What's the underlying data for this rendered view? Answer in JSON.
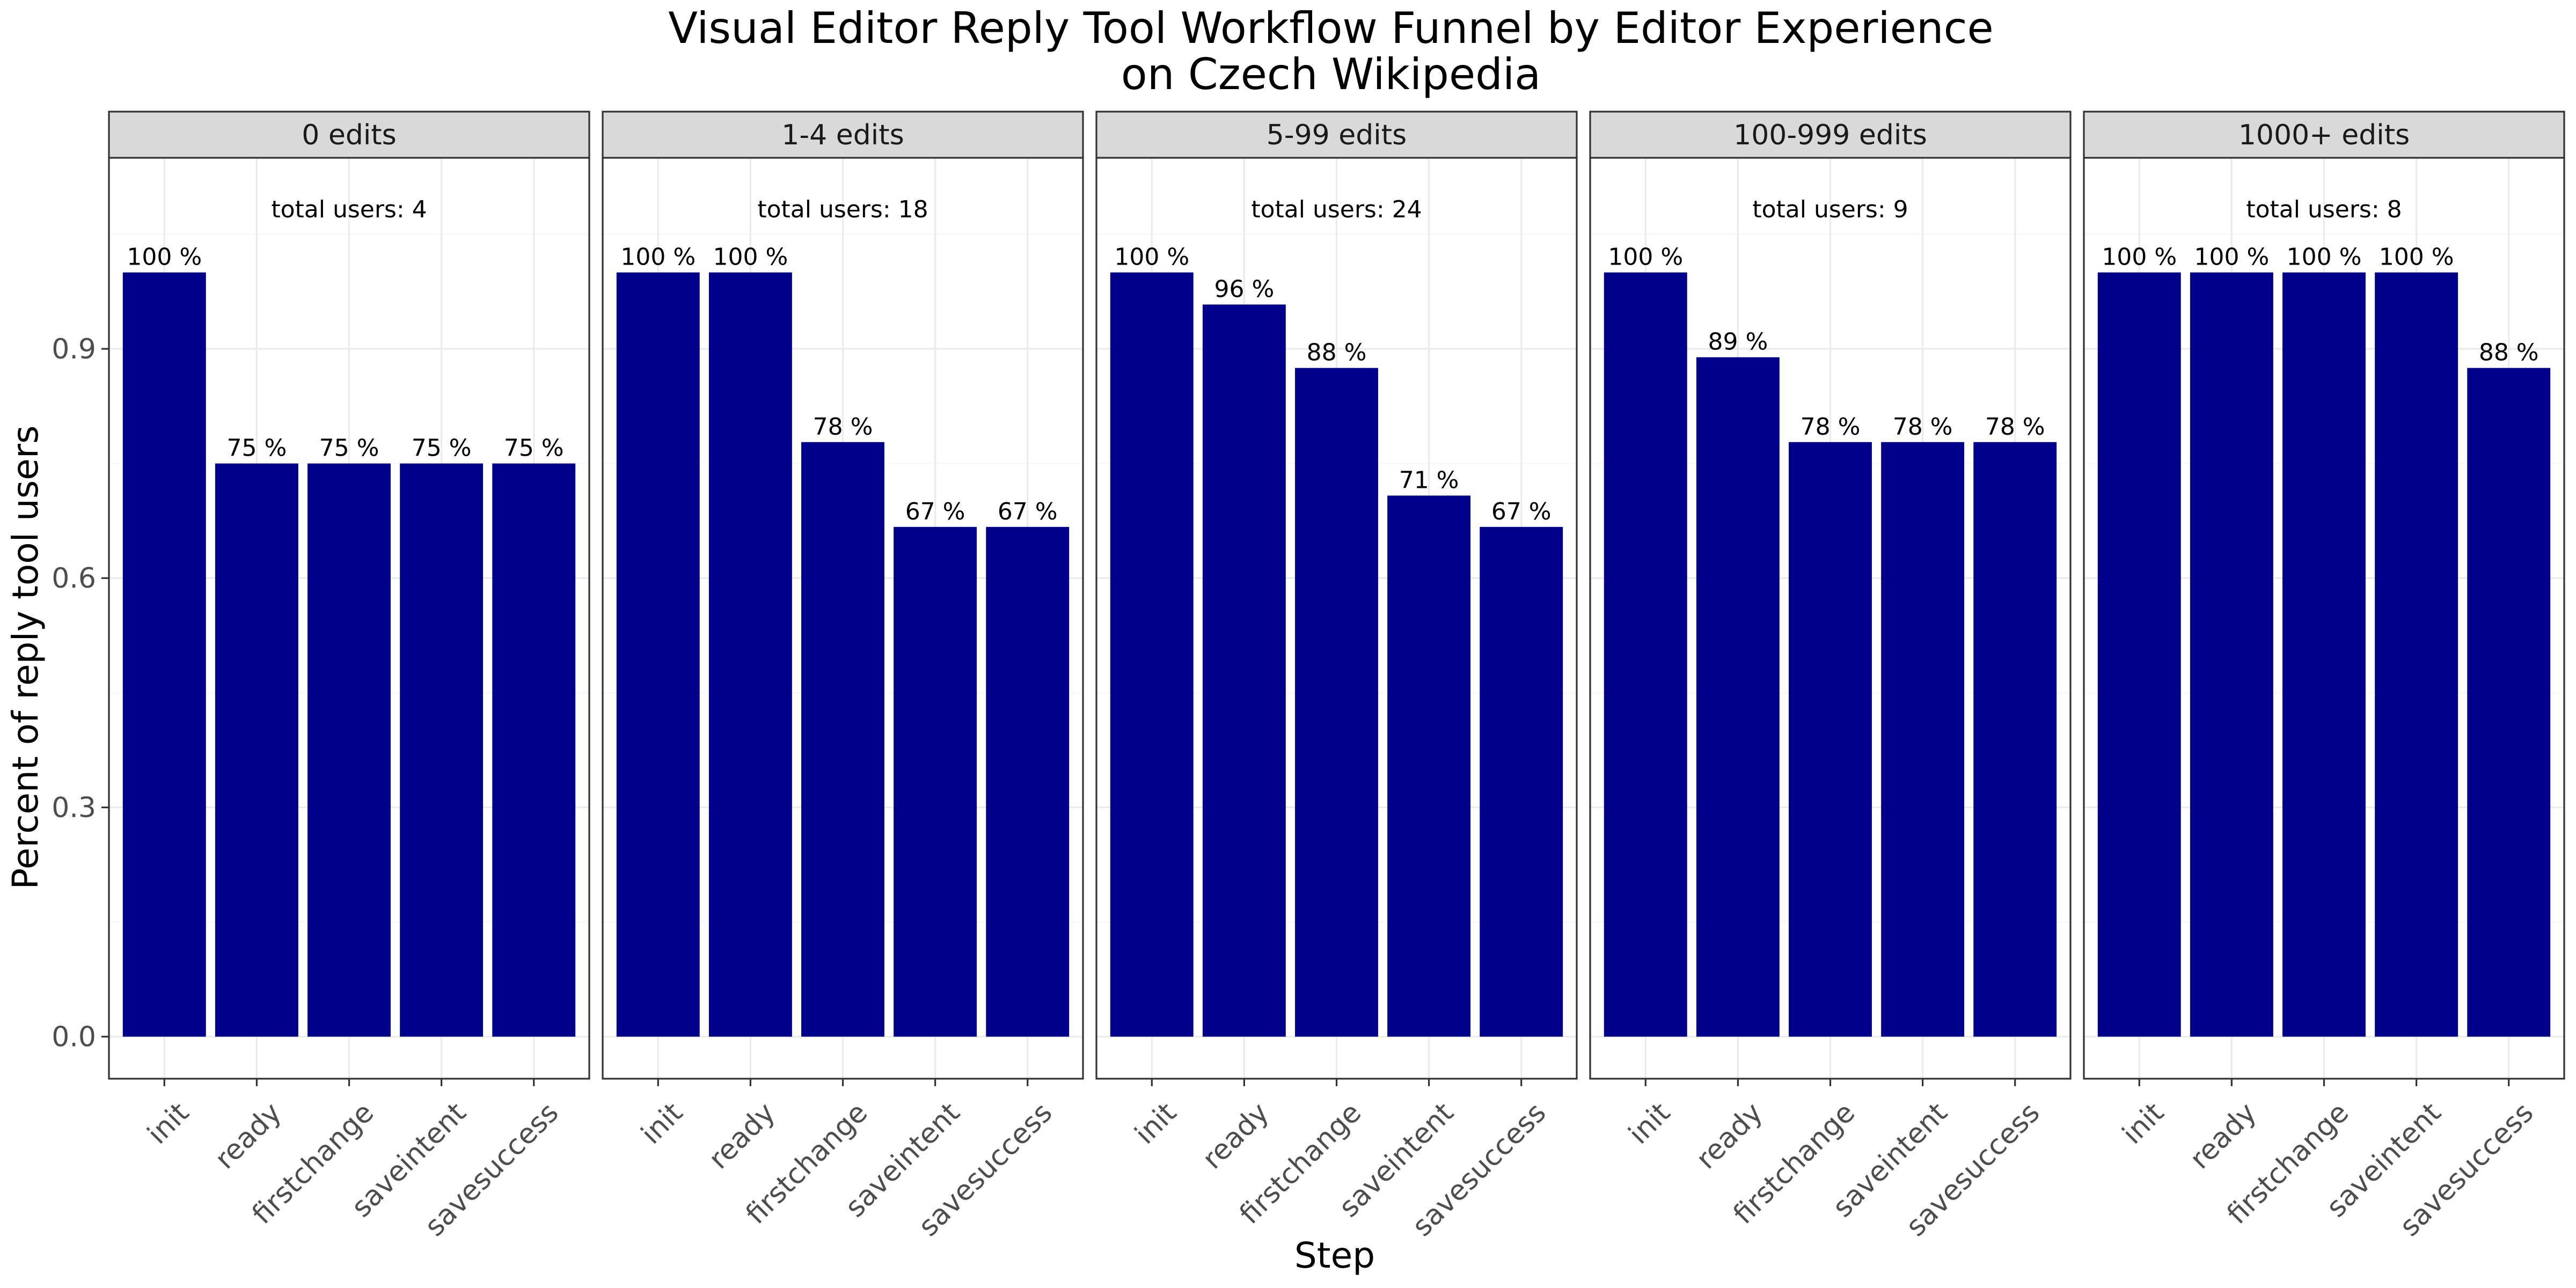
{
  "chart_data": {
    "type": "bar",
    "title_line1": "Visual Editor Reply Tool Workflow Funnel by Editor Experience",
    "title_line2": "on Czech Wikipedia",
    "xlabel": "Step",
    "ylabel": "Percent of reply tool users",
    "ylim": [
      -0.055,
      1.15
    ],
    "y_ticks": [
      0.0,
      0.3,
      0.6,
      0.9
    ],
    "y_tick_labels": [
      "0.0",
      "0.3",
      "0.6",
      "0.9"
    ],
    "grid": true,
    "bar_color": "#00008b",
    "categories": [
      "init",
      "ready",
      "firstchange",
      "saveintent",
      "savesuccess"
    ],
    "panels": [
      {
        "strip": "0 edits",
        "annotation": "total users: 4",
        "values": [
          1.0,
          0.75,
          0.75,
          0.75,
          0.75
        ],
        "labels": [
          "100 %",
          "75 %",
          "75 %",
          "75 %",
          "75 %"
        ]
      },
      {
        "strip": "1-4 edits",
        "annotation": "total users: 18",
        "values": [
          1.0,
          1.0,
          0.778,
          0.667,
          0.667
        ],
        "labels": [
          "100 %",
          "100 %",
          "78 %",
          "67 %",
          "67 %"
        ]
      },
      {
        "strip": "5-99 edits",
        "annotation": "total users: 24",
        "values": [
          1.0,
          0.958,
          0.875,
          0.708,
          0.667
        ],
        "labels": [
          "100 %",
          "96 %",
          "88 %",
          "71 %",
          "67 %"
        ]
      },
      {
        "strip": "100-999 edits",
        "annotation": "total users: 9",
        "values": [
          1.0,
          0.889,
          0.778,
          0.778,
          0.778
        ],
        "labels": [
          "100 %",
          "89 %",
          "78 %",
          "78 %",
          "78 %"
        ]
      },
      {
        "strip": "1000+ edits",
        "annotation": "total users: 8",
        "values": [
          1.0,
          1.0,
          1.0,
          1.0,
          0.875
        ],
        "labels": [
          "100 %",
          "100 %",
          "100 %",
          "100 %",
          "88 %"
        ]
      }
    ]
  }
}
